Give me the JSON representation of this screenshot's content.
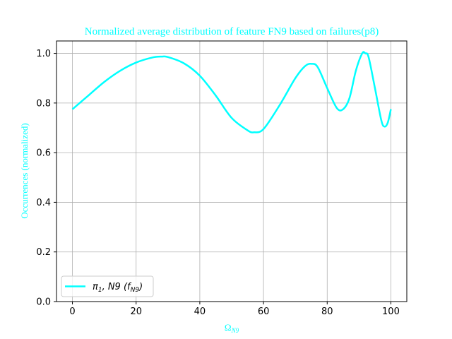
{
  "chart_data": {
    "type": "line",
    "title": "Normalized average distribution of feature FN9 based on failures(p8)",
    "xlabel": "Ω_N9",
    "ylabel": "Occurrences (normalized)",
    "xlim": [
      -5,
      105
    ],
    "ylim": [
      0,
      1.05
    ],
    "xticks": [
      0,
      20,
      40,
      60,
      80,
      100
    ],
    "yticks": [
      0.0,
      0.2,
      0.4,
      0.6,
      0.8,
      1.0
    ],
    "xtick_labels": [
      "0",
      "20",
      "40",
      "60",
      "80",
      "100"
    ],
    "ytick_labels": [
      "0.0",
      "0.2",
      "0.4",
      "0.6",
      "0.8",
      "1.0"
    ],
    "grid": true,
    "legend_position": "lower-left",
    "series": [
      {
        "name": "π1, N9 (fN9)",
        "color": "#00FFFF",
        "x": [
          0,
          5,
          10,
          15,
          20,
          25,
          28,
          30,
          35,
          40,
          45,
          50,
          55,
          57,
          60,
          65,
          70,
          73,
          75,
          77,
          80,
          83,
          85,
          87,
          89,
          91,
          92,
          93,
          95,
          97,
          98,
          99,
          100
        ],
        "y": [
          0.775,
          0.83,
          0.885,
          0.93,
          0.963,
          0.983,
          0.987,
          0.985,
          0.96,
          0.91,
          0.83,
          0.74,
          0.69,
          0.682,
          0.695,
          0.79,
          0.9,
          0.948,
          0.958,
          0.945,
          0.86,
          0.78,
          0.775,
          0.82,
          0.93,
          1.0,
          1.0,
          0.985,
          0.86,
          0.73,
          0.705,
          0.72,
          0.775
        ]
      }
    ]
  }
}
